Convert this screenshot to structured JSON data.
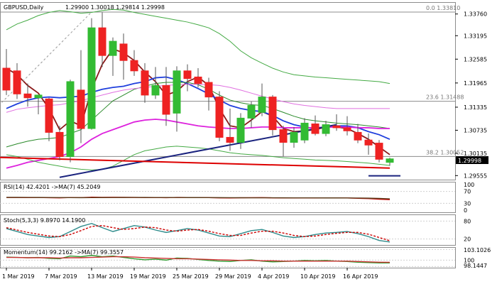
{
  "chart_data": [
    {
      "type": "candlestick",
      "symbol": "GBPUSD,Daily",
      "ohlc_text": "1.29900 1.30018 1.29814 1.29998",
      "last_price": "1.29998",
      "price_ticks": [
        "1.33760",
        "1.33195",
        "1.32585",
        "1.31965",
        "1.31335",
        "1.30735",
        "1.30135",
        "1.29555"
      ],
      "price_range": [
        1.2945,
        1.3405
      ],
      "x_labels": [
        "1 Mar 2019",
        "7 Mar 2019",
        "13 Mar 2019",
        "19 Mar 2019",
        "25 Mar 2019",
        "29 Mar 2019",
        "4 Apr 2019",
        "10 Apr 2019",
        "16 Apr 2019"
      ],
      "x_label_bar_index": [
        0,
        4,
        8,
        12,
        16,
        20,
        24,
        28,
        32
      ],
      "candles": [
        {
          "o": 1.3235,
          "h": 1.3285,
          "l": 1.3165,
          "c": 1.3178
        },
        {
          "o": 1.3228,
          "h": 1.3248,
          "l": 1.3155,
          "c": 1.3168
        },
        {
          "o": 1.3168,
          "h": 1.3195,
          "l": 1.3135,
          "c": 1.3158
        },
        {
          "o": 1.3158,
          "h": 1.3165,
          "l": 1.3115,
          "c": 1.3165
        },
        {
          "o": 1.3155,
          "h": 1.3158,
          "l": 1.3045,
          "c": 1.3068
        },
        {
          "o": 1.3068,
          "h": 1.3085,
          "l": 1.2995,
          "c": 1.3005
        },
        {
          "o": 1.3005,
          "h": 1.3205,
          "l": 1.299,
          "c": 1.32
        },
        {
          "o": 1.3178,
          "h": 1.3282,
          "l": 1.304,
          "c": 1.3078
        },
        {
          "o": 1.3078,
          "h": 1.3365,
          "l": 1.3075,
          "c": 1.334
        },
        {
          "o": 1.334,
          "h": 1.338,
          "l": 1.3238,
          "c": 1.3268
        },
        {
          "o": 1.3268,
          "h": 1.3315,
          "l": 1.3215,
          "c": 1.3305
        },
        {
          "o": 1.3298,
          "h": 1.3325,
          "l": 1.3205,
          "c": 1.3255
        },
        {
          "o": 1.3255,
          "h": 1.3282,
          "l": 1.3215,
          "c": 1.3228
        },
        {
          "o": 1.3228,
          "h": 1.3248,
          "l": 1.3145,
          "c": 1.3165
        },
        {
          "o": 1.3165,
          "h": 1.3238,
          "l": 1.3155,
          "c": 1.319
        },
        {
          "o": 1.319,
          "h": 1.3238,
          "l": 1.3085,
          "c": 1.3115
        },
        {
          "o": 1.3118,
          "h": 1.324,
          "l": 1.307,
          "c": 1.3228
        },
        {
          "o": 1.3228,
          "h": 1.3245,
          "l": 1.3175,
          "c": 1.3208
        },
        {
          "o": 1.3212,
          "h": 1.3235,
          "l": 1.3185,
          "c": 1.3195
        },
        {
          "o": 1.3198,
          "h": 1.321,
          "l": 1.3125,
          "c": 1.316
        },
        {
          "o": 1.316,
          "h": 1.3175,
          "l": 1.3045,
          "c": 1.3055
        },
        {
          "o": 1.3055,
          "h": 1.313,
          "l": 1.302,
          "c": 1.3042
        },
        {
          "o": 1.3042,
          "h": 1.3118,
          "l": 1.3025,
          "c": 1.3105
        },
        {
          "o": 1.3105,
          "h": 1.3148,
          "l": 1.308,
          "c": 1.3138
        },
        {
          "o": 1.312,
          "h": 1.3195,
          "l": 1.311,
          "c": 1.316
        },
        {
          "o": 1.316,
          "h": 1.3165,
          "l": 1.306,
          "c": 1.3075
        },
        {
          "o": 1.3075,
          "h": 1.3085,
          "l": 1.3005,
          "c": 1.3042
        },
        {
          "o": 1.3042,
          "h": 1.3082,
          "l": 1.3028,
          "c": 1.3068
        },
        {
          "o": 1.3048,
          "h": 1.3105,
          "l": 1.304,
          "c": 1.3092
        },
        {
          "o": 1.309,
          "h": 1.3112,
          "l": 1.306,
          "c": 1.3065
        },
        {
          "o": 1.3065,
          "h": 1.3098,
          "l": 1.3058,
          "c": 1.3088
        },
        {
          "o": 1.3085,
          "h": 1.3115,
          "l": 1.3072,
          "c": 1.308
        },
        {
          "o": 1.308,
          "h": 1.311,
          "l": 1.306,
          "c": 1.3072
        },
        {
          "o": 1.3068,
          "h": 1.309,
          "l": 1.304,
          "c": 1.3048
        },
        {
          "o": 1.3048,
          "h": 1.3065,
          "l": 1.301,
          "c": 1.3035
        },
        {
          "o": 1.304,
          "h": 1.3048,
          "l": 1.299,
          "c": 1.2998
        },
        {
          "o": 1.299,
          "h": 1.3002,
          "l": 1.2981,
          "c": 1.2999
        }
      ],
      "fib_levels": [
        {
          "label": "0.0 1.33810",
          "price": 1.3381
        },
        {
          "label": "23.6 1.31488",
          "price": 1.31488
        },
        {
          "label": "38.2 1.30052",
          "price": 1.30052
        }
      ],
      "colors": {
        "bull": "#33bb33",
        "bear": "#ee2222",
        "wick": "#555555",
        "fib": "#8c8c8c",
        "last_price_box": "#000000",
        "grid": "#d8d8d8"
      }
    },
    {
      "type": "line",
      "name": "RSI",
      "label": "RSI(14) 42.4201 ->MA(7) 45.2049",
      "ticks": [
        "100",
        "70",
        "30",
        "0"
      ],
      "range": [
        0,
        100
      ],
      "series": [
        {
          "name": "RSI(14)",
          "color": "#cc0000",
          "values": [
            49.5,
            49.6,
            49.4,
            49.5,
            49.0,
            48.5,
            49.6,
            49.2,
            50.6,
            50.2,
            50.5,
            50.1,
            49.8,
            49.3,
            49.6,
            49.0,
            49.8,
            49.6,
            49.5,
            49.2,
            48.3,
            48.0,
            48.6,
            48.9,
            49.2,
            48.4,
            48.0,
            48.2,
            48.3,
            48.1,
            48.3,
            48.2,
            48.0,
            46.8,
            46.0,
            44.0,
            42.4
          ]
        },
        {
          "name": "MA(7)",
          "color": "#5a3a1a",
          "values": [
            50.0,
            50.0,
            49.8,
            49.7,
            49.5,
            49.3,
            49.2,
            49.1,
            49.3,
            49.4,
            49.6,
            49.7,
            49.8,
            49.7,
            49.6,
            49.5,
            49.5,
            49.4,
            49.4,
            49.3,
            49.1,
            48.9,
            48.8,
            48.7,
            48.7,
            48.6,
            48.5,
            48.4,
            48.4,
            48.3,
            48.2,
            48.2,
            48.1,
            47.8,
            47.3,
            46.4,
            45.2
          ]
        }
      ]
    },
    {
      "type": "line",
      "name": "Stoch",
      "label": "Stoch(5,3,3) 9.8970 14.1900",
      "ticks": [
        "80",
        "20"
      ],
      "range": [
        0,
        100
      ],
      "series": [
        {
          "name": "%K",
          "color": "#2e8b8b",
          "values": [
            55,
            45,
            35,
            30,
            25,
            28,
            45,
            62,
            72,
            58,
            45,
            55,
            65,
            60,
            50,
            42,
            48,
            55,
            50,
            40,
            30,
            28,
            38,
            48,
            52,
            42,
            30,
            25,
            28,
            35,
            40,
            42,
            45,
            38,
            28,
            15,
            9.9
          ]
        },
        {
          "name": "%D",
          "color": "#cc0000",
          "values": [
            58,
            50,
            42,
            36,
            30,
            28,
            35,
            48,
            62,
            65,
            58,
            52,
            55,
            60,
            58,
            50,
            46,
            50,
            52,
            46,
            38,
            32,
            32,
            40,
            46,
            46,
            40,
            32,
            28,
            30,
            35,
            39,
            42,
            42,
            36,
            25,
            14.2
          ]
        }
      ]
    },
    {
      "type": "line",
      "name": "Momentum",
      "label": "Momentum(14) 99.2162 ->MA(7) 99.3557",
      "ticks": [
        "103.1026",
        "100",
        "98.1447"
      ],
      "range": [
        97.8,
        103.6
      ],
      "series": [
        {
          "name": "Momentum(14)",
          "color": "#2e9a2e",
          "values": [
            100.9,
            100.8,
            100.7,
            100.8,
            100.5,
            100.4,
            101.2,
            101.0,
            101.4,
            101.0,
            101.2,
            100.8,
            100.4,
            100.1,
            100.3,
            100.0,
            100.6,
            100.5,
            100.2,
            99.9,
            99.7,
            99.6,
            99.9,
            100.1,
            99.7,
            99.5,
            99.6,
            99.7,
            99.9,
            99.8,
            99.9,
            99.7,
            99.6,
            99.4,
            99.3,
            99.2,
            99.2
          ]
        },
        {
          "name": "MA(7)",
          "color": "#cc3333",
          "values": [
            100.8,
            100.8,
            100.7,
            100.7,
            100.7,
            100.6,
            100.7,
            100.7,
            100.8,
            100.9,
            101.0,
            101.0,
            100.9,
            100.7,
            100.6,
            100.5,
            100.4,
            100.4,
            100.3,
            100.2,
            100.1,
            100.0,
            99.9,
            99.9,
            99.8,
            99.8,
            99.7,
            99.7,
            99.7,
            99.7,
            99.7,
            99.7,
            99.7,
            99.6,
            99.5,
            99.4,
            99.36
          ]
        }
      ]
    }
  ],
  "overlays": [
    {
      "name": "ma-fast",
      "color": "#8b1a1a",
      "values": [
        1.3235,
        1.3218,
        1.319,
        1.317,
        1.313,
        1.3075,
        1.3098,
        1.3085,
        1.318,
        1.3245,
        1.3285,
        1.3275,
        1.3255,
        1.3225,
        1.32,
        1.3165,
        1.3175,
        1.32,
        1.3212,
        1.319,
        1.313,
        1.3085,
        1.308,
        1.31,
        1.3122,
        1.311,
        1.3078,
        1.307,
        1.3072,
        1.3075,
        1.3082,
        1.3082,
        1.3078,
        1.3065,
        1.305,
        1.303,
        1.301
      ]
    },
    {
      "name": "ma-blue",
      "color": "#1f3fdd",
      "values": [
        1.313,
        1.3142,
        1.3152,
        1.3158,
        1.316,
        1.3158,
        1.316,
        1.3162,
        1.3172,
        1.318,
        1.3185,
        1.3188,
        1.3195,
        1.32,
        1.321,
        1.3212,
        1.3205,
        1.3195,
        1.3182,
        1.3168,
        1.3152,
        1.3138,
        1.313,
        1.3125,
        1.3122,
        1.3112,
        1.3098,
        1.3088,
        1.3082,
        1.3078,
        1.3082,
        1.3085,
        1.3085,
        1.308,
        1.307,
        1.3062,
        1.305
      ]
    },
    {
      "name": "ma-green",
      "color": "#2a8a2a",
      "values": [
        1.303,
        1.3038,
        1.3045,
        1.305,
        1.3052,
        1.3055,
        1.3065,
        1.3075,
        1.31,
        1.3125,
        1.315,
        1.3165,
        1.318,
        1.3188,
        1.3195,
        1.3198,
        1.3198,
        1.3198,
        1.3192,
        1.318,
        1.3165,
        1.3152,
        1.3145,
        1.314,
        1.3138,
        1.313,
        1.312,
        1.311,
        1.3102,
        1.3098,
        1.3095,
        1.3092,
        1.309,
        1.3088,
        1.3085,
        1.3082,
        1.3078
      ]
    },
    {
      "name": "ma-magenta",
      "color": "#dd22dd",
      "values": [
        1.2975,
        1.2982,
        1.299,
        1.2995,
        1.3,
        1.3005,
        1.3015,
        1.303,
        1.305,
        1.3065,
        1.3075,
        1.3085,
        1.3095,
        1.31,
        1.3102,
        1.31,
        1.3095,
        1.309,
        1.3085,
        1.3082,
        1.308,
        1.3078,
        1.3078,
        1.308,
        1.3082,
        1.3082,
        1.308,
        1.308,
        1.308,
        1.308,
        1.3082,
        1.3082,
        1.3082,
        1.308,
        1.308,
        1.3078,
        1.3078
      ]
    },
    {
      "name": "bb-upper",
      "color": "#44aa44",
      "values": [
        1.3335,
        1.335,
        1.336,
        1.3372,
        1.338,
        1.3385,
        1.3382,
        1.3378,
        1.338,
        1.3385,
        1.3388,
        1.3386,
        1.338,
        1.3375,
        1.337,
        1.3365,
        1.336,
        1.3355,
        1.3348,
        1.334,
        1.3325,
        1.3305,
        1.328,
        1.3262,
        1.3248,
        1.3235,
        1.3225,
        1.3218,
        1.3215,
        1.3212,
        1.321,
        1.3208,
        1.3206,
        1.3204,
        1.3202,
        1.32,
        1.3195
      ]
    },
    {
      "name": "bb-lower",
      "color": "#44aa44",
      "values": [
        1.301,
        1.3005,
        1.2998,
        1.299,
        1.2985,
        1.298,
        1.2975,
        1.2972,
        1.297,
        1.2972,
        1.298,
        1.2995,
        1.301,
        1.302,
        1.3025,
        1.303,
        1.3032,
        1.303,
        1.3028,
        1.3025,
        1.302,
        1.3015,
        1.3012,
        1.301,
        1.3008,
        1.3005,
        1.3002,
        1.3,
        1.2998,
        1.2996,
        1.2995,
        1.2994,
        1.2992,
        1.299,
        1.2988,
        1.2985,
        1.2982
      ]
    },
    {
      "name": "bb-mid",
      "color": "#e070e0",
      "values": [
        1.312,
        1.3128,
        1.3132,
        1.3135,
        1.3138,
        1.314,
        1.3145,
        1.315,
        1.3158,
        1.3165,
        1.3172,
        1.3178,
        1.3182,
        1.3185,
        1.3188,
        1.319,
        1.3192,
        1.3193,
        1.3193,
        1.3192,
        1.319,
        1.3185,
        1.3178,
        1.317,
        1.3162,
        1.3155,
        1.3148,
        1.3142,
        1.3138,
        1.3135,
        1.3132,
        1.313,
        1.313,
        1.313,
        1.313,
        1.313,
        1.313
      ]
    }
  ],
  "trendlines": [
    {
      "name": "support-trendline",
      "color": "#1a237e",
      "from": {
        "bar": 5,
        "price": 1.2951
      },
      "to": {
        "bar": 31,
        "price": 1.3088
      }
    },
    {
      "name": "red-support-line",
      "color": "#dd0000",
      "from": {
        "bar": -1,
        "price": 1.3003
      },
      "to": {
        "bar": 36,
        "price": 1.2975
      }
    },
    {
      "name": "navy-base-line",
      "color": "#1a237e",
      "from": {
        "bar": 34,
        "price": 1.2955
      },
      "to": {
        "bar": 37,
        "price": 1.2955
      }
    },
    {
      "name": "dashed-diagonal",
      "color": "#999999",
      "from": {
        "bar": -1,
        "price": 1.313
      },
      "to": {
        "bar": 8,
        "price": 1.3381
      }
    }
  ]
}
